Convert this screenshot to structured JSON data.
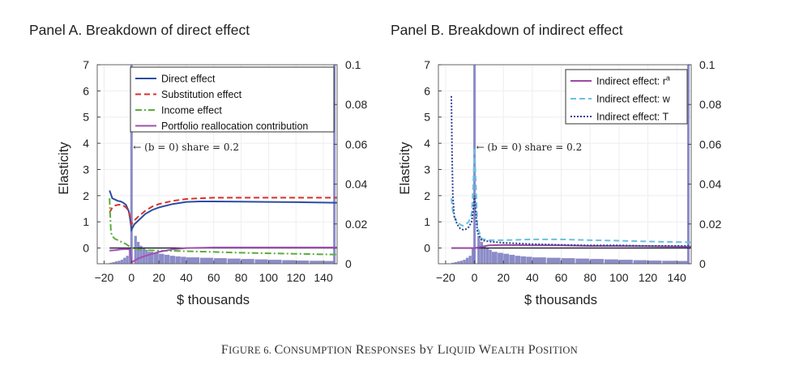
{
  "figure": {
    "caption_first": "F",
    "caption_rest": "IGURE 6. ",
    "caption_words": [
      "Consumption",
      "Responses",
      "by",
      "Liquid",
      "Wealth",
      "Position"
    ]
  },
  "chart_data": [
    {
      "type": "line",
      "title": "Panel A. Breakdown of direct effect",
      "xlabel": "$ thousands",
      "ylabel": "Elasticity",
      "xlim": [
        -25,
        150
      ],
      "ylim": [
        -0.6,
        7
      ],
      "y2lim": [
        0,
        0.1
      ],
      "xticks": [
        -20,
        0,
        20,
        40,
        60,
        80,
        100,
        120,
        140
      ],
      "xtick_labels": [
        "−20",
        "0",
        "20",
        "40",
        "60",
        "80",
        "100",
        "120",
        "140"
      ],
      "yticks": [
        0,
        1,
        2,
        3,
        4,
        5,
        6,
        7
      ],
      "ytick_labels": [
        "0",
        "1",
        "2",
        "3",
        "4",
        "5",
        "6",
        "7"
      ],
      "y2ticks": [
        0,
        0.02,
        0.04,
        0.06,
        0.08,
        0.1
      ],
      "y2tick_labels": [
        "0",
        "0.02",
        "0.04",
        "0.06",
        "0.08",
        "0.1"
      ],
      "legend_position": "top-right",
      "annotation": {
        "text": "← (b = 0) share = 0.2",
        "x": 0,
        "y": 3.85
      },
      "zero_line": 0,
      "series": [
        {
          "name": "Direct effect",
          "color": "#2a4ea0",
          "style": "solid",
          "x": [
            -16,
            -14,
            -12,
            -10,
            -8,
            -6,
            -4,
            -2,
            -1,
            0,
            2,
            5,
            10,
            15,
            20,
            30,
            40,
            50,
            60,
            80,
            100,
            120,
            150
          ],
          "y": [
            2.2,
            1.9,
            1.85,
            1.8,
            1.78,
            1.73,
            1.65,
            1.4,
            1.1,
            0.7,
            0.9,
            1.05,
            1.3,
            1.45,
            1.55,
            1.68,
            1.76,
            1.78,
            1.78,
            1.77,
            1.76,
            1.75,
            1.73
          ]
        },
        {
          "name": "Substitution effect",
          "color": "#d9322b",
          "style": "dashed",
          "x": [
            -16,
            -14,
            -12,
            -10,
            -8,
            -6,
            -4,
            -2,
            -1,
            0,
            2,
            5,
            10,
            15,
            20,
            30,
            40,
            50,
            60,
            80,
            100,
            120,
            150
          ],
          "y": [
            1.35,
            1.55,
            1.62,
            1.65,
            1.66,
            1.62,
            1.55,
            1.4,
            1.2,
            0.9,
            1.05,
            1.2,
            1.42,
            1.58,
            1.68,
            1.8,
            1.87,
            1.9,
            1.92,
            1.92,
            1.92,
            1.92,
            1.92
          ]
        },
        {
          "name": "Income effect",
          "color": "#5aad3e",
          "style": "dashdot",
          "x": [
            -16,
            -15,
            -14,
            -12,
            -10,
            -8,
            -6,
            -4,
            -2,
            0,
            5,
            10,
            20,
            40,
            60,
            80,
            100,
            120,
            150
          ],
          "y": [
            1.9,
            0.6,
            0.45,
            0.35,
            0.3,
            0.25,
            0.2,
            0.15,
            0.08,
            0.0,
            -0.05,
            -0.08,
            -0.1,
            -0.12,
            -0.15,
            -0.18,
            -0.2,
            -0.22,
            -0.25
          ]
        },
        {
          "name": "Portfolio reallocation contribution",
          "color": "#a050b0",
          "style": "solid",
          "x": [
            -16,
            -12,
            -8,
            -4,
            -1,
            0,
            5,
            10,
            20,
            30,
            40,
            60,
            80,
            100,
            120,
            150
          ],
          "y": [
            -0.1,
            -0.08,
            -0.05,
            -0.04,
            -0.05,
            -0.55,
            -0.4,
            -0.3,
            -0.15,
            -0.05,
            0.0,
            0.02,
            0.02,
            0.02,
            0.02,
            0.02
          ]
        }
      ],
      "histogram": {
        "axis": "right",
        "color": "#7878c0",
        "x": [
          -16,
          -14,
          -12,
          -10,
          -8,
          -6,
          -4,
          -2,
          0,
          2,
          4,
          6,
          8,
          10,
          12,
          16,
          20,
          24,
          28,
          32,
          36,
          40,
          50,
          60,
          70,
          80,
          90,
          100,
          110,
          120,
          130,
          140,
          148
        ],
        "density": [
          0.0005,
          0.0008,
          0.0012,
          0.0015,
          0.002,
          0.003,
          0.004,
          0.008,
          0.1,
          0.014,
          0.011,
          0.009,
          0.008,
          0.007,
          0.006,
          0.0055,
          0.005,
          0.0045,
          0.004,
          0.0037,
          0.0035,
          0.0032,
          0.003,
          0.0028,
          0.0026,
          0.0024,
          0.0022,
          0.002,
          0.0018,
          0.0016,
          0.0015,
          0.0014,
          0.1
        ]
      }
    },
    {
      "type": "line",
      "title": "Panel B. Breakdown of indirect effect",
      "xlabel": "$ thousands",
      "ylabel": "Elasticity",
      "xlim": [
        -25,
        150
      ],
      "ylim": [
        -0.6,
        7
      ],
      "y2lim": [
        0,
        0.1
      ],
      "xticks": [
        -20,
        0,
        20,
        40,
        60,
        80,
        100,
        120,
        140
      ],
      "xtick_labels": [
        "−20",
        "0",
        "20",
        "40",
        "60",
        "80",
        "100",
        "120",
        "140"
      ],
      "yticks": [
        0,
        1,
        2,
        3,
        4,
        5,
        6,
        7
      ],
      "ytick_labels": [
        "0",
        "1",
        "2",
        "3",
        "4",
        "5",
        "6",
        "7"
      ],
      "y2ticks": [
        0,
        0.02,
        0.04,
        0.06,
        0.08,
        0.1
      ],
      "y2tick_labels": [
        "0",
        "0.02",
        "0.04",
        "0.06",
        "0.08",
        "0.1"
      ],
      "legend_position": "top-right",
      "annotation": {
        "text": "← (b = 0) share = 0.2",
        "x": 0,
        "y": 3.85
      },
      "zero_line": 0,
      "series": [
        {
          "name": "Indirect effect: r",
          "name_sup": "a",
          "color": "#9a4aa5",
          "style": "solid",
          "x": [
            -16,
            -10,
            -5,
            0,
            5,
            10,
            20,
            40,
            60,
            80,
            100,
            120,
            150
          ],
          "y": [
            0.0,
            0.0,
            0.0,
            0.0,
            0.05,
            0.1,
            0.12,
            0.1,
            0.1,
            0.08,
            0.08,
            0.07,
            0.05
          ]
        },
        {
          "name": "Indirect effect: w",
          "name_sup": "",
          "color": "#6cc0dc",
          "style": "dashed",
          "x": [
            -16,
            -15,
            -14,
            -12,
            -10,
            -8,
            -6,
            -4,
            -2,
            -1,
            0,
            2,
            5,
            10,
            20,
            40,
            60,
            80,
            100,
            120,
            150
          ],
          "y": [
            1.9,
            1.4,
            1.2,
            1.0,
            0.9,
            0.85,
            0.9,
            1.0,
            1.3,
            2.2,
            3.85,
            0.8,
            0.35,
            0.3,
            0.3,
            0.33,
            0.33,
            0.3,
            0.28,
            0.25,
            0.22
          ]
        },
        {
          "name": "Indirect effect: T",
          "name_sup": "",
          "color": "#2a3f8f",
          "style": "dotted",
          "x": [
            -16,
            -15.5,
            -15,
            -14,
            -12,
            -10,
            -8,
            -6,
            -4,
            -2,
            -1,
            0,
            2,
            5,
            10,
            20,
            40,
            60,
            80,
            100,
            120,
            150
          ],
          "y": [
            5.8,
            3.5,
            2.0,
            1.2,
            0.9,
            0.75,
            0.7,
            0.72,
            0.8,
            1.0,
            1.4,
            2.0,
            0.6,
            0.3,
            0.25,
            0.2,
            0.15,
            0.12,
            0.1,
            0.1,
            0.08,
            0.08
          ]
        }
      ],
      "histogram": {
        "axis": "right",
        "color": "#7878c0",
        "x": [
          -16,
          -14,
          -12,
          -10,
          -8,
          -6,
          -4,
          -2,
          0,
          2,
          4,
          6,
          8,
          10,
          12,
          16,
          20,
          24,
          28,
          32,
          36,
          40,
          50,
          60,
          70,
          80,
          90,
          100,
          110,
          120,
          130,
          140,
          148
        ],
        "density": [
          0.0005,
          0.0008,
          0.0012,
          0.0015,
          0.002,
          0.003,
          0.004,
          0.008,
          0.1,
          0.014,
          0.011,
          0.009,
          0.008,
          0.007,
          0.006,
          0.0055,
          0.005,
          0.0045,
          0.004,
          0.0037,
          0.0035,
          0.0032,
          0.003,
          0.0028,
          0.0026,
          0.0024,
          0.0022,
          0.002,
          0.0018,
          0.0016,
          0.0015,
          0.0014,
          0.1
        ]
      }
    }
  ]
}
